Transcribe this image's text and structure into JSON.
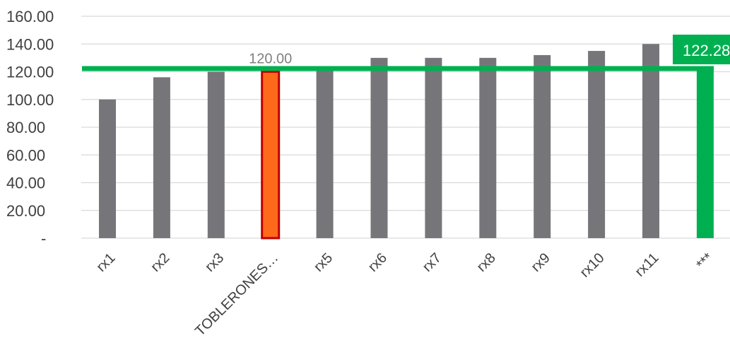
{
  "chart_data": {
    "type": "bar",
    "categories": [
      "rx1",
      "rx2",
      "rx3",
      "TOBLERONES…",
      "rx5",
      "rx6",
      "rx7",
      "rx8",
      "rx9",
      "rx10",
      "rx11",
      "***"
    ],
    "values": [
      100,
      116,
      120,
      120,
      123,
      130,
      130,
      130,
      132,
      135,
      140,
      122.28
    ],
    "y_ticks": [
      "-",
      "20.00",
      "40.00",
      "60.00",
      "80.00",
      "100.00",
      "120.00",
      "140.00",
      "160.00"
    ],
    "ylim": [
      0,
      160
    ],
    "highlight": {
      "category": "TOBLERONES…",
      "label": "120.00"
    },
    "average_line": {
      "value": 122.28,
      "label": "122.28"
    },
    "grid": true,
    "legend": "none",
    "colors": {
      "bar": "#76767a",
      "highlight_fill": "#ff6a1a",
      "highlight_border": "#c00000",
      "average": "#00b050",
      "grid": "#d9d9d9",
      "text": "#404040"
    }
  }
}
